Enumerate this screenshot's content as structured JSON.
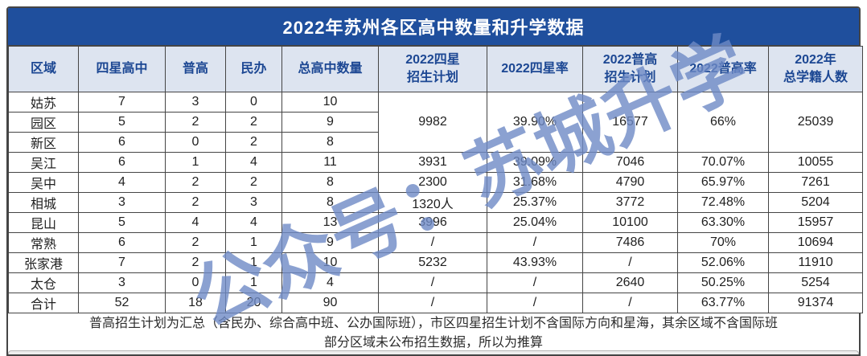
{
  "title": "2022年苏州各区高中数量和升学数据",
  "watermark": "公众号：苏城升学",
  "colors": {
    "title_bar_bg": "#1f4f9d",
    "title_text": "#ffffff",
    "header_bg": "#dde4f0",
    "header_text": "#1c4793",
    "border_color": "#454545",
    "cell_text": "#1f1f1f"
  },
  "table": {
    "columns": [
      {
        "label": "区域"
      },
      {
        "label": "四星高中"
      },
      {
        "label": "普高"
      },
      {
        "label": "民办"
      },
      {
        "label": "总高中数量"
      },
      {
        "label": "2022四星",
        "label2": "招生计划"
      },
      {
        "label": "2022四星率"
      },
      {
        "label": "2022普高",
        "label2": "招生计划"
      },
      {
        "label": "2022普高率"
      },
      {
        "label": "2022年",
        "label2": "总学籍人数"
      }
    ],
    "body": [
      {
        "cells": [
          {
            "t": "姑苏",
            "n": "district-cell"
          },
          {
            "t": "7"
          },
          {
            "t": "3"
          },
          {
            "t": "0"
          },
          {
            "t": "10"
          },
          {
            "t": "9982",
            "rs": 3
          },
          {
            "t": "39.90%",
            "rs": 3
          },
          {
            "t": "16577",
            "rs": 3
          },
          {
            "t": "66%",
            "rs": 3
          },
          {
            "t": "25039",
            "rs": 3
          }
        ]
      },
      {
        "cells": [
          {
            "t": "园区",
            "n": "district-cell"
          },
          {
            "t": "5"
          },
          {
            "t": "2"
          },
          {
            "t": "2"
          },
          {
            "t": "9"
          }
        ]
      },
      {
        "cells": [
          {
            "t": "新区",
            "n": "district-cell"
          },
          {
            "t": "6"
          },
          {
            "t": "0"
          },
          {
            "t": "2"
          },
          {
            "t": "8"
          }
        ]
      },
      {
        "cells": [
          {
            "t": "吴江",
            "n": "district-cell"
          },
          {
            "t": "6"
          },
          {
            "t": "1"
          },
          {
            "t": "4"
          },
          {
            "t": "11"
          },
          {
            "t": "3931"
          },
          {
            "t": "39.09%"
          },
          {
            "t": "7046"
          },
          {
            "t": "70.07%"
          },
          {
            "t": "10055"
          }
        ]
      },
      {
        "cells": [
          {
            "t": "吴中",
            "n": "district-cell"
          },
          {
            "t": "4"
          },
          {
            "t": "2"
          },
          {
            "t": "2"
          },
          {
            "t": "8"
          },
          {
            "t": "2300"
          },
          {
            "t": "31.68%"
          },
          {
            "t": "4790"
          },
          {
            "t": "65.97%"
          },
          {
            "t": "7261"
          }
        ]
      },
      {
        "cells": [
          {
            "t": "相城",
            "n": "district-cell"
          },
          {
            "t": "3"
          },
          {
            "t": "2"
          },
          {
            "t": "3"
          },
          {
            "t": "8"
          },
          {
            "t": "1320人"
          },
          {
            "t": "25.37%"
          },
          {
            "t": "3772"
          },
          {
            "t": "72.48%"
          },
          {
            "t": "5204"
          }
        ]
      },
      {
        "cells": [
          {
            "t": "昆山",
            "n": "district-cell"
          },
          {
            "t": "5"
          },
          {
            "t": "4"
          },
          {
            "t": "4"
          },
          {
            "t": "13"
          },
          {
            "t": "3996"
          },
          {
            "t": "25.04%"
          },
          {
            "t": "10100"
          },
          {
            "t": "63.30%"
          },
          {
            "t": "15957"
          }
        ]
      },
      {
        "cells": [
          {
            "t": "常熟",
            "n": "district-cell"
          },
          {
            "t": "6"
          },
          {
            "t": "2"
          },
          {
            "t": "1"
          },
          {
            "t": "9"
          },
          {
            "t": "/"
          },
          {
            "t": "/"
          },
          {
            "t": "7486"
          },
          {
            "t": "70%"
          },
          {
            "t": "10694"
          }
        ]
      },
      {
        "cells": [
          {
            "t": "张家港",
            "n": "district-cell"
          },
          {
            "t": "7"
          },
          {
            "t": "2"
          },
          {
            "t": "1"
          },
          {
            "t": "10"
          },
          {
            "t": "5232"
          },
          {
            "t": "43.93%"
          },
          {
            "t": "/"
          },
          {
            "t": "52.06%"
          },
          {
            "t": "11910"
          }
        ]
      },
      {
        "cells": [
          {
            "t": "太仓",
            "n": "district-cell"
          },
          {
            "t": "3"
          },
          {
            "t": "0"
          },
          {
            "t": "1"
          },
          {
            "t": "4"
          },
          {
            "t": "/"
          },
          {
            "t": "/"
          },
          {
            "t": "2640"
          },
          {
            "t": "50.25%"
          },
          {
            "t": "5254"
          }
        ]
      },
      {
        "cells": [
          {
            "t": "合计",
            "n": "total-label-cell"
          },
          {
            "t": "52"
          },
          {
            "t": "18"
          },
          {
            "t": "20"
          },
          {
            "t": "90"
          },
          {
            "t": "/"
          },
          {
            "t": "/"
          },
          {
            "t": "/"
          },
          {
            "t": "63.77%"
          },
          {
            "t": "91374"
          }
        ]
      }
    ]
  },
  "footnote": {
    "line1": "普高招生计划为汇总（含民办、综合高中班、公办国际班），市区四星招生计划不含国际方向和星海，其余区域不含国际班",
    "line2": "部分区域未公布招生数据，所以为推算"
  },
  "chart_data": {
    "type": "table",
    "title": "2022年苏州各区高中数量和升学数据",
    "columns": [
      "区域",
      "四星高中",
      "普高",
      "民办",
      "总高中数量",
      "2022四星招生计划",
      "2022四星率",
      "2022普高招生计划",
      "2022普高率",
      "2022年总学籍人数"
    ],
    "rows": [
      [
        "姑苏",
        7,
        3,
        0,
        10,
        "9982",
        "39.90%",
        "16577",
        "66%",
        "25039"
      ],
      [
        "园区",
        5,
        2,
        2,
        9,
        "",
        "",
        "",
        "",
        ""
      ],
      [
        "新区",
        6,
        0,
        2,
        8,
        "",
        "",
        "",
        "",
        ""
      ],
      [
        "吴江",
        6,
        1,
        4,
        11,
        "3931",
        "39.09%",
        "7046",
        "70.07%",
        "10055"
      ],
      [
        "吴中",
        4,
        2,
        2,
        8,
        "2300",
        "31.68%",
        "4790",
        "65.97%",
        "7261"
      ],
      [
        "相城",
        3,
        2,
        3,
        8,
        "1320人",
        "25.37%",
        "3772",
        "72.48%",
        "5204"
      ],
      [
        "昆山",
        5,
        4,
        4,
        13,
        "3996",
        "25.04%",
        "10100",
        "63.30%",
        "15957"
      ],
      [
        "常熟",
        6,
        2,
        1,
        9,
        "/",
        "/",
        "7486",
        "70%",
        "10694"
      ],
      [
        "张家港",
        7,
        2,
        1,
        10,
        "5232",
        "43.93%",
        "/",
        "52.06%",
        "11910"
      ],
      [
        "太仓",
        3,
        0,
        1,
        4,
        "/",
        "/",
        "2640",
        "50.25%",
        "5254"
      ],
      [
        "合计",
        52,
        18,
        20,
        90,
        "/",
        "/",
        "/",
        "63.77%",
        "91374"
      ]
    ],
    "merged_note": "第6-10列在姑苏/园区/新区三行纵向合并，合并值为 9982 / 39.90% / 16577 / 66% / 25039"
  }
}
